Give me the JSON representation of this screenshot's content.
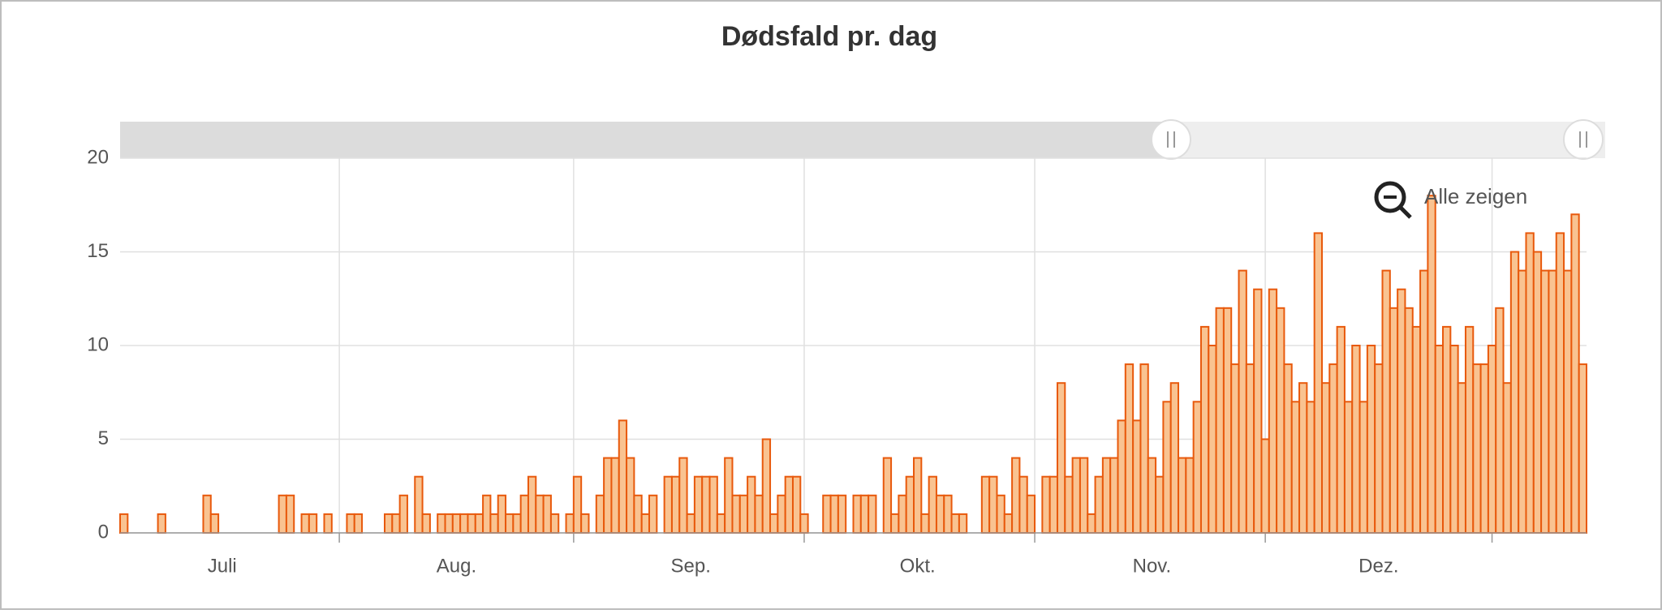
{
  "chart_data": {
    "type": "bar",
    "title": "Dødsfald pr. dag",
    "button_label": "Alle zeigen",
    "categories": [
      null,
      null,
      null,
      null,
      null,
      null,
      null,
      null,
      null,
      null,
      null,
      null,
      null,
      "Juli",
      null,
      null,
      null,
      null,
      null,
      null,
      null,
      null,
      null,
      null,
      null,
      null,
      null,
      null,
      null,
      null,
      null,
      null,
      null,
      null,
      null,
      null,
      null,
      null,
      null,
      null,
      null,
      null,
      null,
      null,
      "Aug.",
      null,
      null,
      null,
      null,
      null,
      null,
      null,
      null,
      null,
      null,
      null,
      null,
      null,
      null,
      null,
      null,
      null,
      null,
      null,
      null,
      null,
      null,
      null,
      null,
      null,
      null,
      null,
      null,
      null,
      null,
      "Sep.",
      null,
      null,
      null,
      null,
      null,
      null,
      null,
      null,
      null,
      null,
      null,
      null,
      null,
      null,
      null,
      null,
      null,
      null,
      null,
      null,
      null,
      null,
      null,
      null,
      null,
      null,
      null,
      null,
      null,
      "Okt.",
      null,
      null,
      null,
      null,
      null,
      null,
      null,
      null,
      null,
      null,
      null,
      null,
      null,
      null,
      null,
      null,
      null,
      null,
      null,
      null,
      null,
      null,
      null,
      null,
      null,
      null,
      null,
      null,
      null,
      null,
      "Nov.",
      null,
      null,
      null,
      null,
      null,
      null,
      null,
      null,
      null,
      null,
      null,
      null,
      null,
      null,
      null,
      null,
      null,
      null,
      null,
      null,
      null,
      null,
      null,
      null,
      null,
      null,
      null,
      null,
      null,
      "Dez.",
      null,
      null,
      null,
      null,
      null,
      null,
      null,
      null,
      null,
      null,
      null,
      null,
      null,
      null,
      null,
      null,
      null,
      null,
      null,
      null,
      null,
      null,
      null,
      null,
      null,
      null,
      null
    ],
    "values": [
      1,
      0,
      0,
      0,
      0,
      1,
      0,
      0,
      0,
      0,
      0,
      2,
      1,
      0,
      0,
      0,
      0,
      0,
      0,
      0,
      0,
      2,
      2,
      0,
      1,
      1,
      0,
      1,
      0,
      0,
      1,
      1,
      0,
      0,
      0,
      1,
      1,
      2,
      0,
      3,
      1,
      0,
      1,
      1,
      1,
      1,
      1,
      1,
      2,
      1,
      2,
      1,
      1,
      2,
      3,
      2,
      2,
      1,
      0,
      1,
      3,
      1,
      0,
      2,
      4,
      4,
      6,
      4,
      2,
      1,
      2,
      0,
      3,
      3,
      4,
      1,
      3,
      3,
      3,
      1,
      4,
      2,
      2,
      3,
      2,
      5,
      1,
      2,
      3,
      3,
      1,
      0,
      0,
      2,
      2,
      2,
      0,
      2,
      2,
      2,
      0,
      4,
      1,
      2,
      3,
      4,
      1,
      3,
      2,
      2,
      1,
      1,
      0,
      0,
      3,
      3,
      2,
      1,
      4,
      3,
      2,
      0,
      3,
      3,
      8,
      3,
      4,
      4,
      1,
      3,
      4,
      4,
      6,
      9,
      6,
      9,
      4,
      3,
      7,
      8,
      4,
      4,
      7,
      11,
      10,
      12,
      12,
      9,
      14,
      9,
      13,
      5,
      13,
      12,
      9,
      7,
      8,
      7,
      16,
      8,
      9,
      11,
      7,
      10,
      7,
      10,
      9,
      14,
      12,
      13,
      12,
      11,
      14,
      18,
      10,
      11,
      10,
      8,
      11,
      9,
      9,
      10,
      12,
      8,
      15,
      14,
      16,
      15,
      14,
      14,
      16,
      14,
      17,
      9
    ],
    "color": "#e8590c",
    "fill": "#f9c391",
    "ylim": [
      0,
      20
    ],
    "yticks": [
      0,
      5,
      10,
      15,
      20
    ],
    "grid": true
  }
}
